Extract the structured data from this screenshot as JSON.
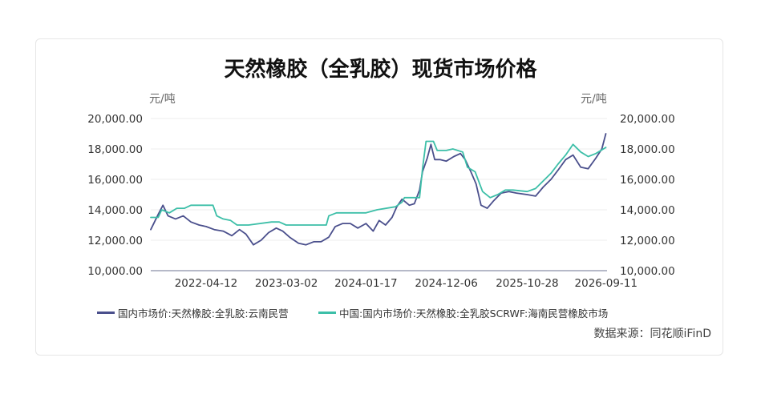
{
  "chart_data": {
    "type": "line",
    "title": "天然橡胶（全乳胶）现货市场价格",
    "y_unit_left": "元/吨",
    "y_unit_right": "元/吨",
    "ylim": [
      10000,
      20000
    ],
    "yticks": [
      "20,000.00",
      "18,000.00",
      "16,000.00",
      "14,000.00",
      "12,000.00",
      "10,000.00"
    ],
    "yticks_values": [
      20000,
      18000,
      16000,
      14000,
      12000,
      10000
    ],
    "xlim": [
      "2021-09-01",
      "2026-09-15"
    ],
    "xticks": [
      "2022-04-12",
      "2023-03-02",
      "2024-01-17",
      "2024-12-06",
      "2025-10-28",
      "2026-09-11"
    ],
    "grid": "horizontal",
    "legend_position": "bottom",
    "series": [
      {
        "name": "国内市场价:天然橡胶:全乳胶:云南民营",
        "color": "#4a4f8c",
        "points": [
          [
            "2021-09-01",
            12700
          ],
          [
            "2021-10-01",
            13700
          ],
          [
            "2021-10-20",
            14300
          ],
          [
            "2021-11-10",
            13600
          ],
          [
            "2021-12-10",
            13400
          ],
          [
            "2022-01-10",
            13600
          ],
          [
            "2022-02-10",
            13200
          ],
          [
            "2022-03-15",
            13000
          ],
          [
            "2022-04-12",
            12900
          ],
          [
            "2022-05-15",
            12700
          ],
          [
            "2022-06-20",
            12600
          ],
          [
            "2022-07-25",
            12300
          ],
          [
            "2022-08-25",
            12700
          ],
          [
            "2022-09-20",
            12400
          ],
          [
            "2022-10-20",
            11700
          ],
          [
            "2022-11-20",
            12000
          ],
          [
            "2022-12-20",
            12500
          ],
          [
            "2023-01-20",
            12800
          ],
          [
            "2023-02-15",
            12600
          ],
          [
            "2023-03-15",
            12200
          ],
          [
            "2023-04-20",
            11800
          ],
          [
            "2023-05-20",
            11700
          ],
          [
            "2023-06-20",
            11900
          ],
          [
            "2023-07-20",
            11900
          ],
          [
            "2023-08-20",
            12200
          ],
          [
            "2023-09-15",
            12900
          ],
          [
            "2023-10-15",
            13100
          ],
          [
            "2023-11-15",
            13100
          ],
          [
            "2023-12-15",
            12800
          ],
          [
            "2024-01-17",
            13100
          ],
          [
            "2024-02-15",
            12600
          ],
          [
            "2024-03-10",
            13300
          ],
          [
            "2024-04-05",
            13000
          ],
          [
            "2024-05-01",
            13500
          ],
          [
            "2024-05-20",
            14200
          ],
          [
            "2024-06-10",
            14700
          ],
          [
            "2024-07-10",
            14300
          ],
          [
            "2024-07-30",
            14400
          ],
          [
            "2024-08-20",
            15300
          ],
          [
            "2024-09-01",
            16500
          ],
          [
            "2024-09-20",
            17400
          ],
          [
            "2024-10-05",
            18300
          ],
          [
            "2024-10-20",
            17300
          ],
          [
            "2024-11-10",
            17300
          ],
          [
            "2024-12-06",
            17200
          ],
          [
            "2025-01-05",
            17500
          ],
          [
            "2025-02-01",
            17700
          ],
          [
            "2025-02-20",
            17300
          ],
          [
            "2025-03-15",
            16500
          ],
          [
            "2025-04-05",
            15700
          ],
          [
            "2025-04-25",
            14300
          ],
          [
            "2025-05-20",
            14100
          ],
          [
            "2025-06-15",
            14600
          ],
          [
            "2025-07-15",
            15100
          ],
          [
            "2025-08-15",
            15200
          ],
          [
            "2025-09-15",
            15100
          ],
          [
            "2025-10-28",
            15000
          ],
          [
            "2025-12-01",
            14900
          ],
          [
            "2026-01-01",
            15500
          ],
          [
            "2026-02-01",
            16000
          ],
          [
            "2026-03-01",
            16600
          ],
          [
            "2026-04-01",
            17300
          ],
          [
            "2026-05-01",
            17600
          ],
          [
            "2026-06-01",
            16800
          ],
          [
            "2026-07-01",
            16700
          ],
          [
            "2026-08-01",
            17400
          ],
          [
            "2026-08-25",
            18000
          ],
          [
            "2026-09-10",
            19000
          ]
        ]
      },
      {
        "name": "中国:国内市场价:天然橡胶:全乳胶SCRWF:海南民营橡胶市场",
        "color": "#3dbfa8",
        "points": [
          [
            "2021-09-01",
            13500
          ],
          [
            "2021-10-01",
            13500
          ],
          [
            "2021-10-15",
            14000
          ],
          [
            "2021-11-15",
            13800
          ],
          [
            "2021-12-15",
            14100
          ],
          [
            "2022-01-15",
            14100
          ],
          [
            "2022-02-10",
            14300
          ],
          [
            "2022-04-12",
            14300
          ],
          [
            "2022-05-10",
            14300
          ],
          [
            "2022-05-25",
            13600
          ],
          [
            "2022-06-20",
            13400
          ],
          [
            "2022-07-20",
            13300
          ],
          [
            "2022-08-15",
            13000
          ],
          [
            "2022-10-01",
            13000
          ],
          [
            "2023-01-01",
            13200
          ],
          [
            "2023-02-01",
            13200
          ],
          [
            "2023-03-01",
            13000
          ],
          [
            "2023-06-01",
            13000
          ],
          [
            "2023-08-10",
            13000
          ],
          [
            "2023-08-20",
            13600
          ],
          [
            "2023-09-20",
            13800
          ],
          [
            "2023-11-01",
            13800
          ],
          [
            "2024-01-17",
            13800
          ],
          [
            "2024-03-01",
            14000
          ],
          [
            "2024-05-15",
            14200
          ],
          [
            "2024-06-10",
            14500
          ],
          [
            "2024-06-20",
            14800
          ],
          [
            "2024-08-20",
            14800
          ],
          [
            "2024-09-01",
            16700
          ],
          [
            "2024-09-15",
            18500
          ],
          [
            "2024-10-15",
            18500
          ],
          [
            "2024-10-30",
            17900
          ],
          [
            "2024-12-06",
            17900
          ],
          [
            "2025-01-01",
            18000
          ],
          [
            "2025-02-10",
            17800
          ],
          [
            "2025-03-01",
            16800
          ],
          [
            "2025-04-01",
            16500
          ],
          [
            "2025-05-01",
            15200
          ],
          [
            "2025-06-01",
            14800
          ],
          [
            "2025-07-01",
            15000
          ],
          [
            "2025-08-01",
            15300
          ],
          [
            "2025-09-01",
            15300
          ],
          [
            "2025-10-28",
            15200
          ],
          [
            "2025-12-01",
            15400
          ],
          [
            "2026-01-01",
            15900
          ],
          [
            "2026-02-01",
            16400
          ],
          [
            "2026-03-01",
            17000
          ],
          [
            "2026-04-01",
            17600
          ],
          [
            "2026-05-01",
            18300
          ],
          [
            "2026-06-01",
            17800
          ],
          [
            "2026-07-01",
            17500
          ],
          [
            "2026-08-01",
            17700
          ],
          [
            "2026-09-10",
            18100
          ]
        ]
      }
    ]
  },
  "source": "数据来源：同花顺iFinD"
}
